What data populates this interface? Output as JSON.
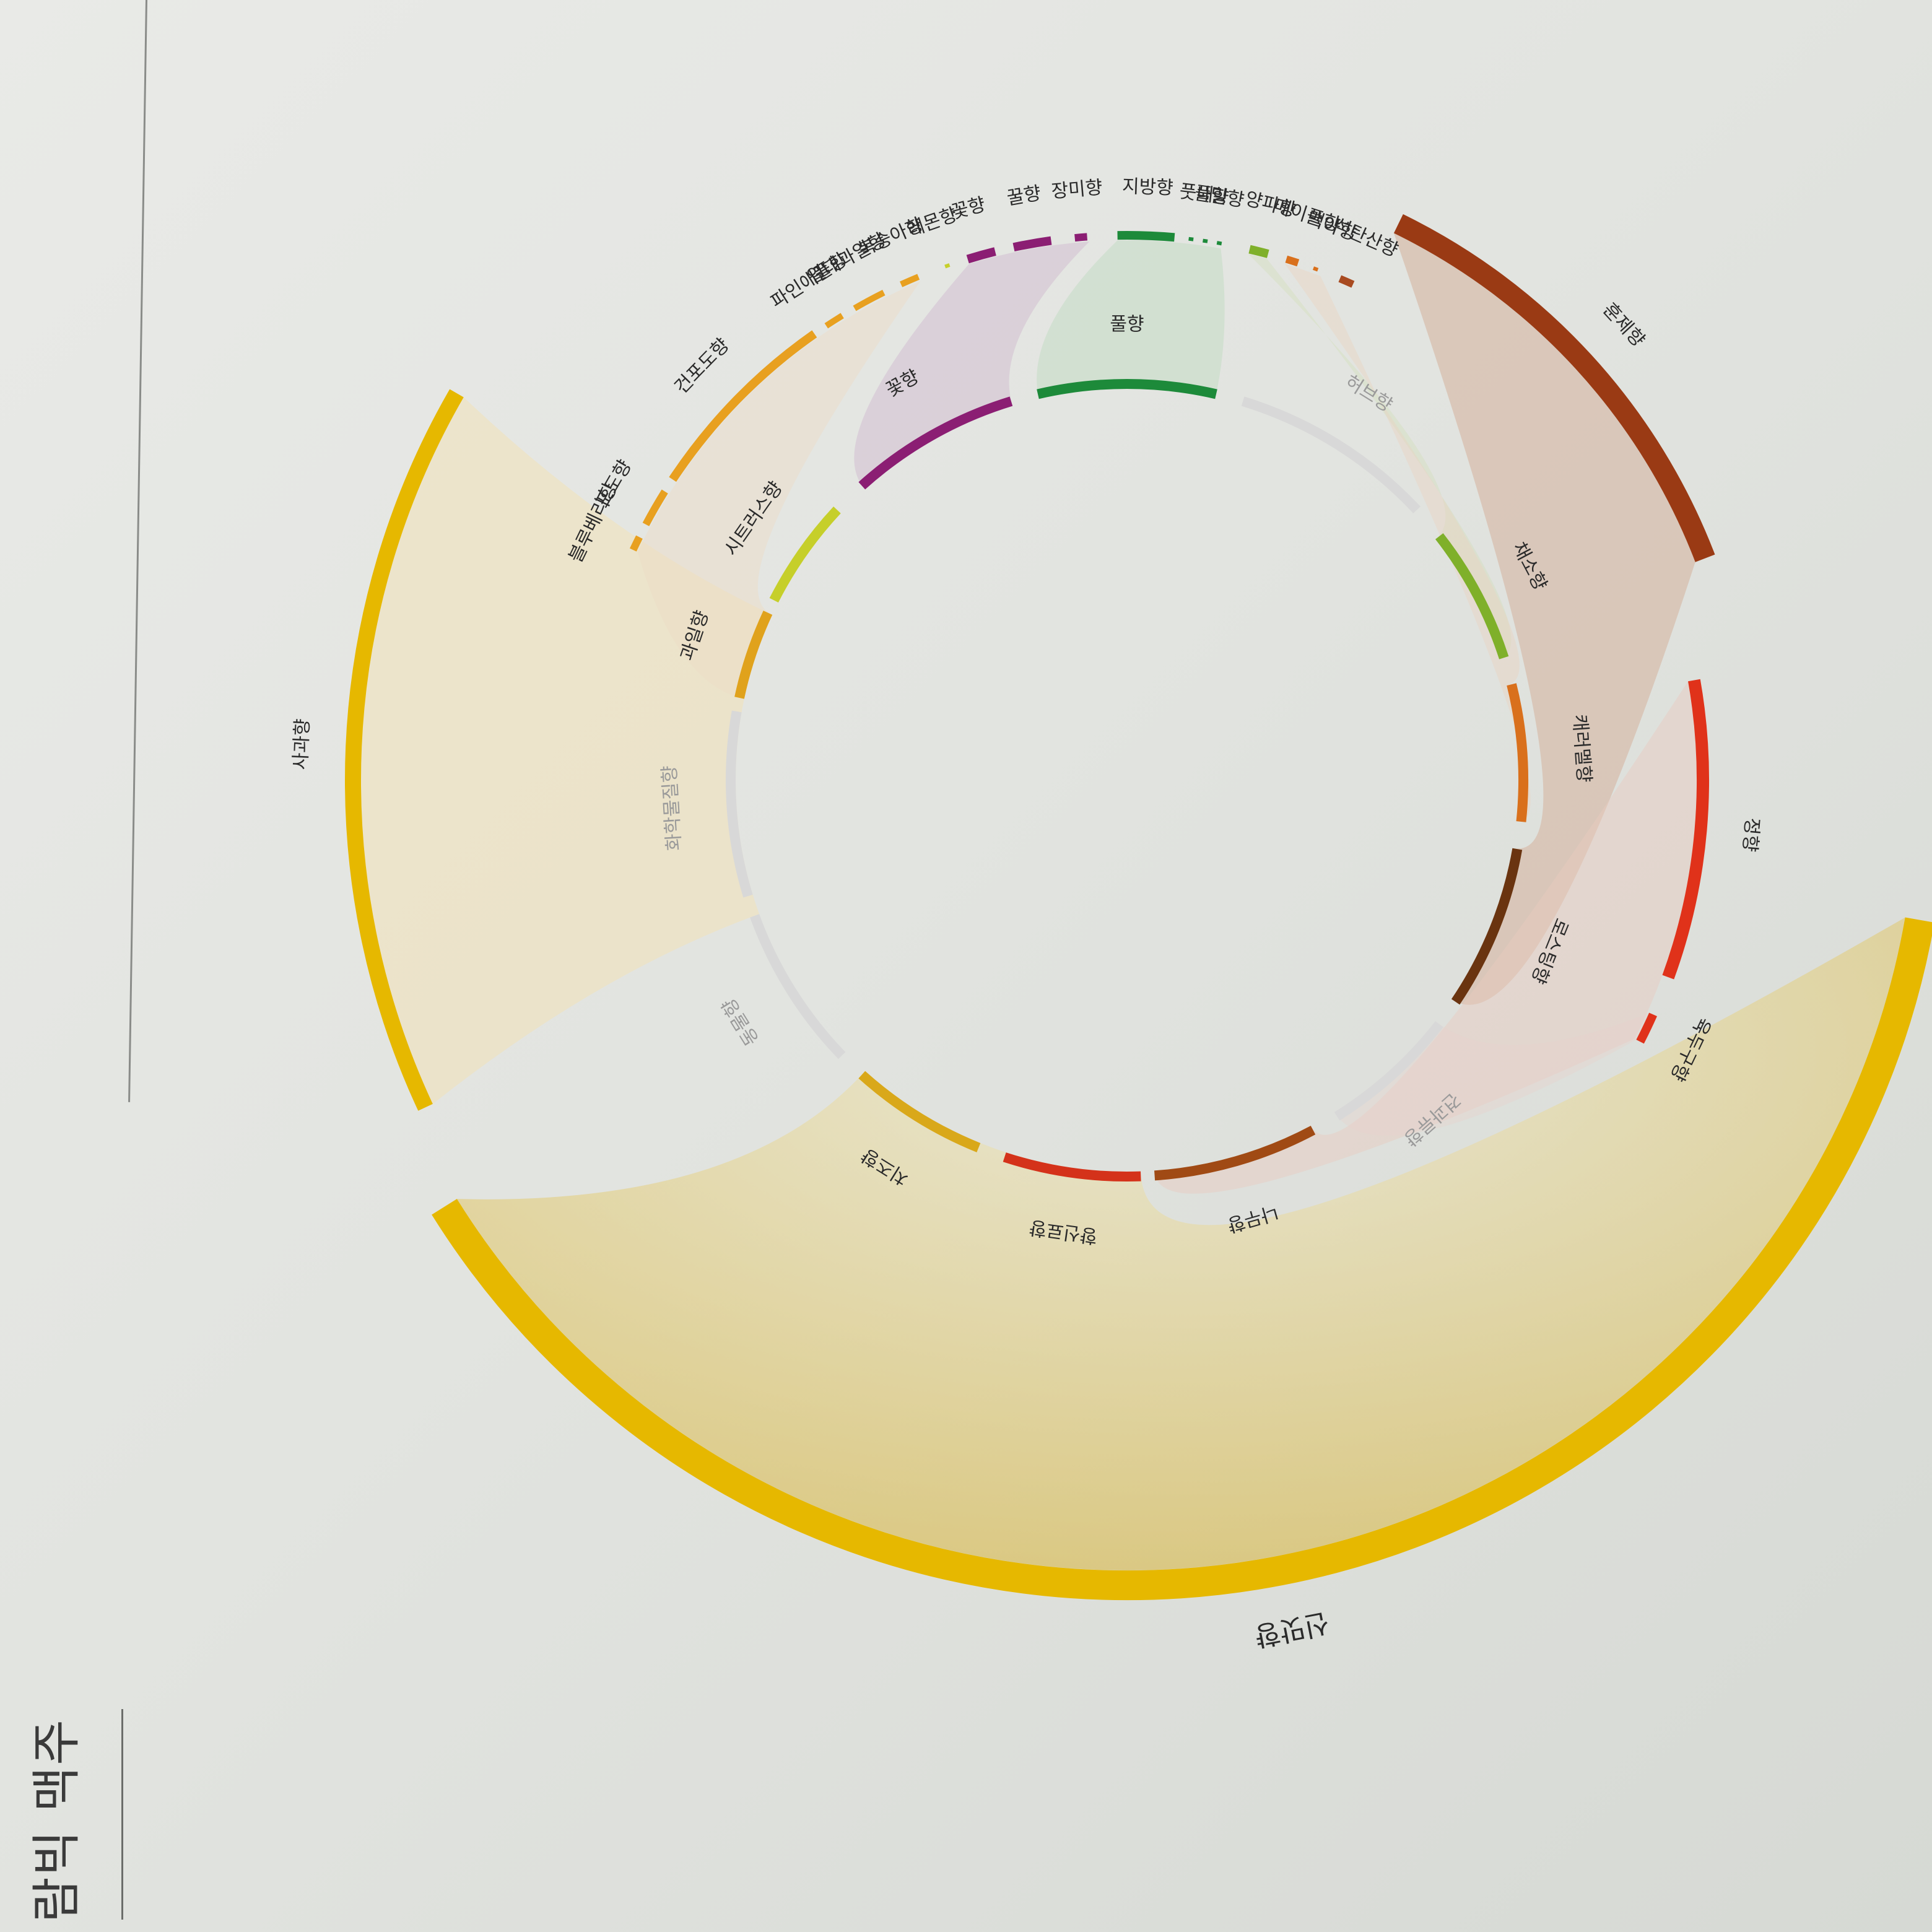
{
  "page": {
    "title": "람빅 맥주"
  },
  "inner_ring": [
    {
      "label": "꽃향",
      "color": "#8b1e73",
      "muted": false
    },
    {
      "label": "풀향",
      "color": "#1d8a3a",
      "muted": false
    },
    {
      "label": "허브향",
      "color": "#d8d8d8",
      "muted": true
    },
    {
      "label": "채소향",
      "color": "#7fb02a",
      "muted": false
    },
    {
      "label": "캐러멜향",
      "color": "#d9701c",
      "muted": false
    },
    {
      "label": "로스팅향",
      "color": "#6a3410",
      "muted": false
    },
    {
      "label": "견과류향",
      "color": "#d8d8d8",
      "muted": true
    },
    {
      "label": "나무향",
      "color": "#a04a14",
      "muted": false
    },
    {
      "label": "향신료향",
      "color": "#d4321a",
      "muted": false
    },
    {
      "label": "치즈향",
      "color": "#d9a81a",
      "muted": false
    },
    {
      "label": "동물향",
      "color": "#d8d8d8",
      "muted": true
    },
    {
      "label": "화학물질향",
      "color": "#d8d8d8",
      "muted": true
    },
    {
      "label": "과일향",
      "color": "#e0a21c",
      "muted": false
    },
    {
      "label": "시트러스향",
      "color": "#c6cf2a",
      "muted": false
    }
  ],
  "outer_ring": [
    {
      "label": "신맛향",
      "color": "#e6b800"
    },
    {
      "label": "사과향",
      "color": "#e6b800"
    },
    {
      "label": "블루베리향",
      "color": "#e8a020"
    },
    {
      "label": "포도향",
      "color": "#e8a020"
    },
    {
      "label": "건포도향",
      "color": "#e8a020"
    },
    {
      "label": "파인애플향",
      "color": "#e8a020"
    },
    {
      "label": "열대과일향",
      "color": "#e8a020"
    },
    {
      "label": "복숭아향",
      "color": "#e8a020"
    },
    {
      "label": "레몬향",
      "color": "#c6cf2a"
    },
    {
      "label": "꽃향",
      "color": "#8b1e73"
    },
    {
      "label": "꿀향",
      "color": "#8b1e73"
    },
    {
      "label": "장미향",
      "color": "#8b1e73"
    },
    {
      "label": "지방향",
      "color": "#1d8a3a"
    },
    {
      "label": "풋내",
      "color": "#1d8a3a"
    },
    {
      "label": "풀향",
      "color": "#1d8a3a"
    },
    {
      "label": "밀향",
      "color": "#1d8a3a"
    },
    {
      "label": "양파향",
      "color": "#7fb02a"
    },
    {
      "label": "메이플향",
      "color": "#d9701c"
    },
    {
      "label": "맥아향",
      "color": "#d9701c"
    },
    {
      "label": "석탄산향",
      "color": "#a84a20"
    },
    {
      "label": "훈제향",
      "color": "#9a3a14"
    },
    {
      "label": "정향",
      "color": "#e0321a"
    },
    {
      "label": "육두구향",
      "color": "#e0321a"
    }
  ]
}
